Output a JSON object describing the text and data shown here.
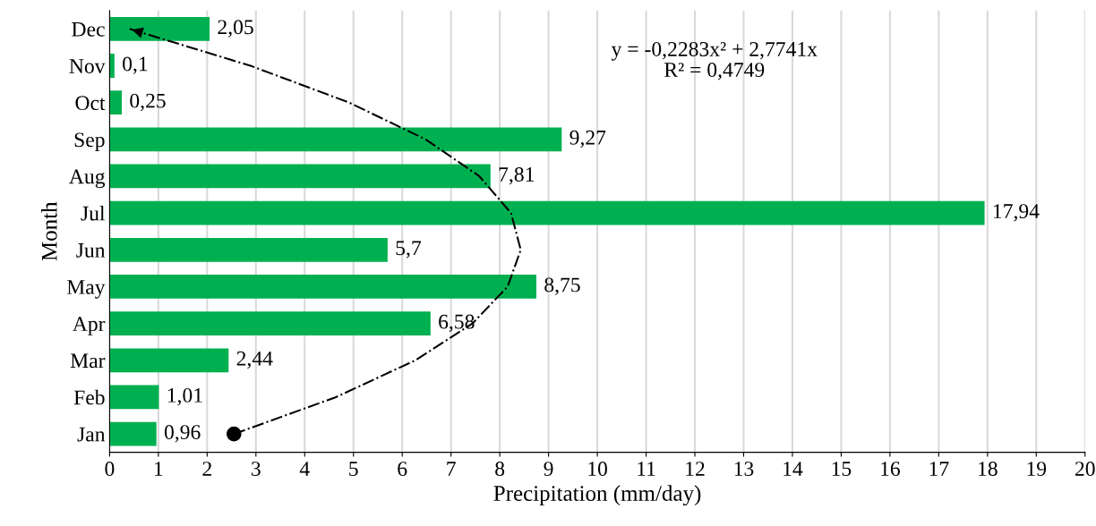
{
  "chart_data": {
    "type": "bar",
    "orientation": "horizontal",
    "xlabel": "Precipitation (mm/day)",
    "ylabel": "Month",
    "categories": [
      "Dec",
      "Nov",
      "Oct",
      "Sep",
      "Aug",
      "Jul",
      "Jun",
      "May",
      "Apr",
      "Mar",
      "Feb",
      "Jan"
    ],
    "series": [
      {
        "color": "#00b050",
        "values": [
          2.05,
          0.1,
          0.25,
          9.27,
          7.81,
          17.94,
          5.7,
          8.75,
          6.58,
          2.44,
          1.01,
          0.96
        ],
        "value_labels": [
          "2,05",
          "0,1",
          "0,25",
          "9,27",
          "7,81",
          "17,94",
          "5,7",
          "8,75",
          "6,58",
          "2,44",
          "1,01",
          "0,96"
        ]
      },
      {
        "type": "line",
        "color": "#000000",
        "line_style": "dashdot",
        "values": [
          0.41,
          2.89,
          4.91,
          6.48,
          7.58,
          8.23,
          8.43,
          8.16,
          7.44,
          6.27,
          4.64,
          2.55
        ]
      }
    ],
    "xlim": [
      0,
      20
    ],
    "xticks": [
      0,
      1,
      2,
      3,
      4,
      5,
      6,
      7,
      8,
      9,
      10,
      11,
      12,
      13,
      14,
      15,
      16,
      17,
      18,
      19,
      20
    ],
    "grid": "x",
    "legend": false,
    "annotations": [
      "y = -0,2283x² + 2,7741x\nR² = 0,4749"
    ]
  }
}
